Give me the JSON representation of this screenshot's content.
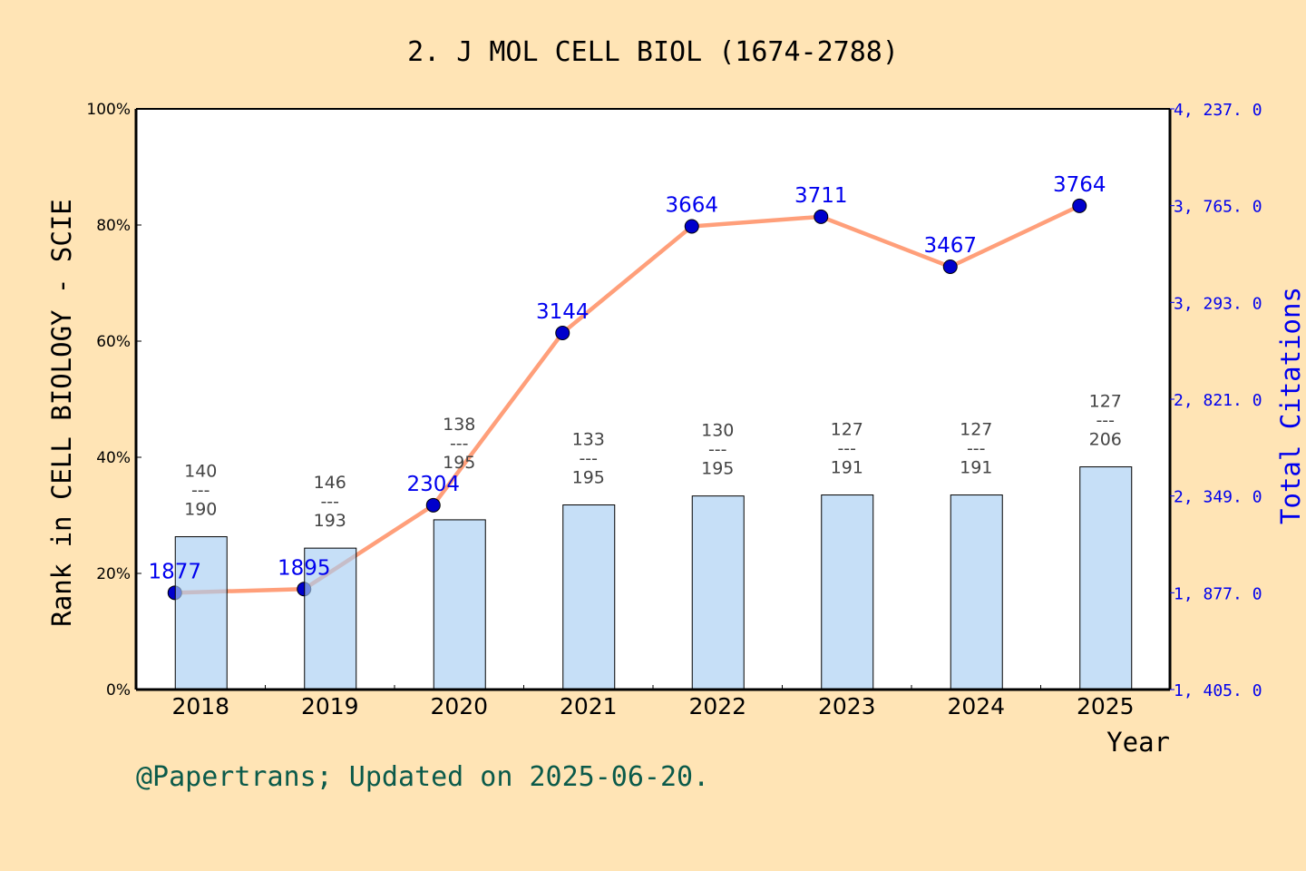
{
  "chart_data": {
    "type": "bar+line",
    "title": "2. J MOL CELL BIOL (1674-2788)",
    "xlabel": "Year",
    "ylabel_left": "Rank in CELL BIOLOGY - SCIE",
    "ylabel_right": "Total Citations",
    "categories": [
      "2018",
      "2019",
      "2020",
      "2021",
      "2022",
      "2023",
      "2024",
      "2025"
    ],
    "left_axis": {
      "ylim": [
        0,
        100
      ],
      "ticks": [
        "0%",
        "20%",
        "40%",
        "60%",
        "80%",
        "100%"
      ]
    },
    "right_axis": {
      "ylim": [
        1405,
        4237
      ],
      "ticks": [
        "1, 405. 0",
        "1, 877. 0",
        "2, 349. 0",
        "2, 821. 0",
        "3, 293. 0",
        "3, 765. 0",
        "4, 237. 0"
      ]
    },
    "bars": {
      "rank": [
        140,
        146,
        138,
        133,
        130,
        127,
        127,
        127
      ],
      "total": [
        190,
        193,
        195,
        195,
        195,
        191,
        191,
        206
      ],
      "separator": "---",
      "color": "#c5e0f7"
    },
    "citations": {
      "values": [
        1877,
        1895,
        2304,
        3144,
        3664,
        3711,
        3467,
        3764
      ],
      "line_color": "#ff9f7a",
      "marker_color": "#0000cc",
      "label_color": "#0000ee"
    },
    "grid": false,
    "footer": "@Papertrans; Updated on 2025-06-20.",
    "footer_color": "#0b5a4a",
    "background": "#ffe4b5"
  }
}
